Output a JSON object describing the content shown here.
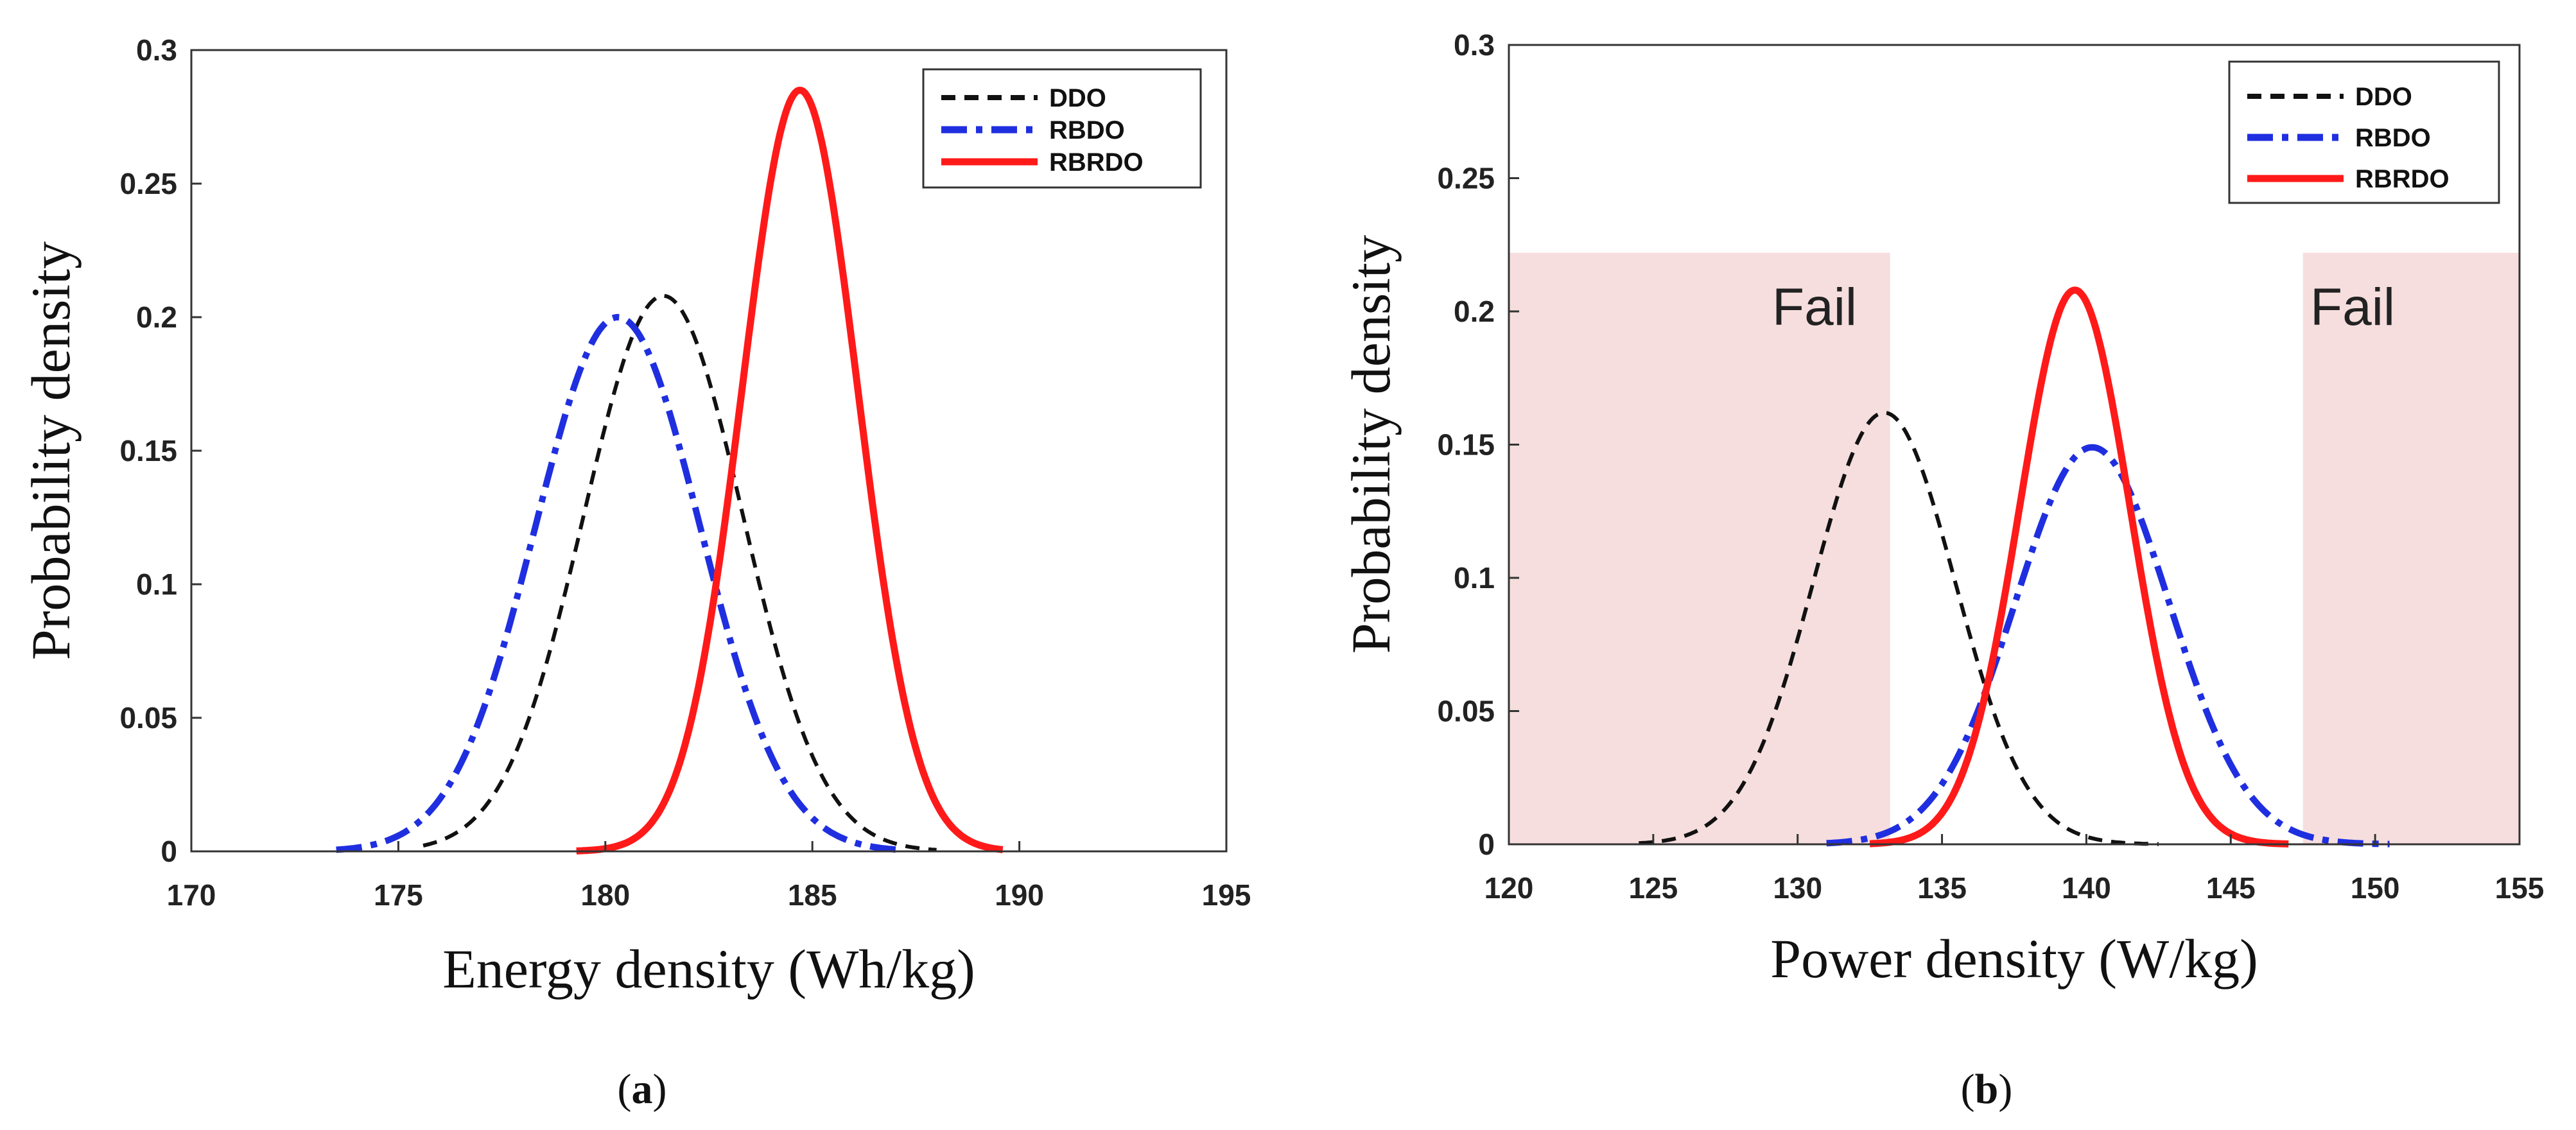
{
  "colors": {
    "DDO": "#111111",
    "RBDO": "#1f2fe0",
    "RBRDO": "#ff1a1a",
    "fail_region": "#f6dede"
  },
  "chart_data": [
    {
      "type": "line",
      "panel_label": "a",
      "xlabel": "Energy density (Wh/kg)",
      "ylabel": "Probability density",
      "xlim": [
        170,
        195
      ],
      "ylim": [
        0,
        0.3
      ],
      "xticks": [
        "170",
        "175",
        "180",
        "185",
        "190",
        "195"
      ],
      "yticks": [
        "0",
        "0.05",
        "0.1",
        "0.15",
        "0.2",
        "0.25",
        "0.3"
      ],
      "legend_position": "top-right",
      "series": [
        {
          "name": "DDO",
          "style": "dashed",
          "mean": 181.4,
          "peak": 0.208,
          "x_range": [
            175.6,
            188.0
          ]
        },
        {
          "name": "RBDO",
          "style": "dash-dot",
          "mean": 180.3,
          "peak": 0.2,
          "x_range": [
            173.5,
            187.2
          ]
        },
        {
          "name": "RBRDO",
          "style": "solid",
          "mean": 184.7,
          "peak": 0.285,
          "x_range": [
            179.3,
            189.6
          ]
        }
      ]
    },
    {
      "type": "line",
      "panel_label": "b",
      "xlabel": "Power density (W/kg)",
      "ylabel": "Probability density",
      "xlim": [
        120,
        155
      ],
      "ylim": [
        0,
        0.3
      ],
      "xticks": [
        "120",
        "125",
        "130",
        "135",
        "140",
        "145",
        "150",
        "155"
      ],
      "yticks": [
        "0",
        "0.05",
        "0.1",
        "0.15",
        "0.2",
        "0.25",
        "0.3"
      ],
      "legend_position": "top-right",
      "annotations": [
        {
          "text": "Fail",
          "x_range": [
            120,
            133.2
          ],
          "y_top": 0.222
        },
        {
          "text": "Fail",
          "x_range": [
            147.5,
            155
          ],
          "y_top": 0.222
        }
      ],
      "series": [
        {
          "name": "DDO",
          "style": "dashed",
          "mean": 133.0,
          "peak": 0.162,
          "x_range": [
            124.5,
            142.5
          ]
        },
        {
          "name": "RBDO",
          "style": "dash-dot",
          "mean": 140.2,
          "peak": 0.149,
          "x_range": [
            131.0,
            150.5
          ]
        },
        {
          "name": "RBRDO",
          "style": "solid",
          "mean": 139.6,
          "peak": 0.208,
          "x_range": [
            132.5,
            147.0
          ]
        }
      ]
    }
  ]
}
